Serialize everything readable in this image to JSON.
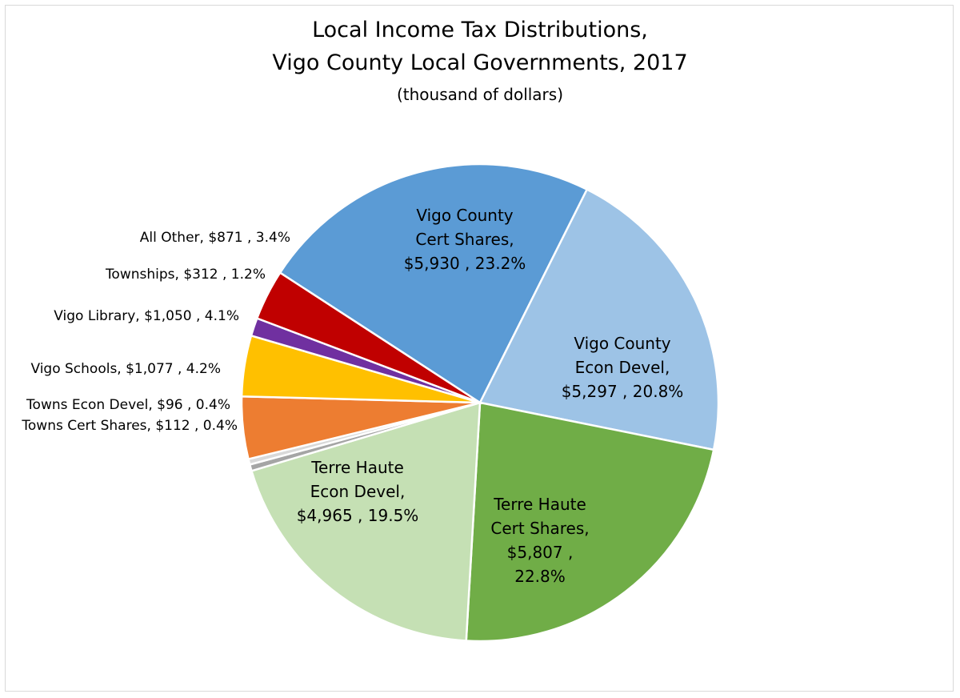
{
  "chart_data": {
    "type": "pie",
    "title_lines": [
      "Local Income Tax Distributions,",
      "Vigo County Local Governments, 2017"
    ],
    "subtitle": "(thousand of dollars)",
    "slices": [
      {
        "name": "Vigo County Cert Shares",
        "value": 5930,
        "percent": 23.2,
        "color": "#5B9BD5",
        "label_lines": [
          "Vigo County",
          "Cert Shares,",
          "$5,930 , 23.2%"
        ]
      },
      {
        "name": "Vigo County Econ Devel",
        "value": 5297,
        "percent": 20.8,
        "color": "#9DC3E6",
        "label_lines": [
          "Vigo County",
          "Econ Devel,",
          "$5,297 , 20.8%"
        ]
      },
      {
        "name": "Terre Haute Cert Shares",
        "value": 5807,
        "percent": 22.8,
        "color": "#70AD47",
        "label_lines": [
          "Terre Haute",
          "Cert Shares,",
          "$5,807 ,",
          "22.8%"
        ]
      },
      {
        "name": "Terre Haute Econ Devel",
        "value": 4965,
        "percent": 19.5,
        "color": "#C5E0B4",
        "label_lines": [
          "Terre Haute",
          "Econ Devel,",
          "$4,965 , 19.5%"
        ]
      },
      {
        "name": "Towns Cert Shares",
        "value": 112,
        "percent": 0.4,
        "color": "#A5A5A5",
        "label_lines": [
          "Towns Cert Shares,  $112 , 0.4%"
        ]
      },
      {
        "name": "Towns Econ Devel",
        "value": 96,
        "percent": 0.4,
        "color": "#D9D9D9",
        "label_lines": [
          "Towns Econ Devel,  $96 , 0.4%"
        ]
      },
      {
        "name": "Vigo Schools",
        "value": 1077,
        "percent": 4.2,
        "color": "#ED7D31",
        "label_lines": [
          "Vigo Schools,  $1,077 , 4.2%"
        ]
      },
      {
        "name": "Vigo Library",
        "value": 1050,
        "percent": 4.1,
        "color": "#FFC000",
        "label_lines": [
          "Vigo Library,  $1,050 , 4.1%"
        ]
      },
      {
        "name": "Townships",
        "value": 312,
        "percent": 1.2,
        "color": "#7030A0",
        "label_lines": [
          "Townships,  $312 , 1.2%"
        ]
      },
      {
        "name": "All Other",
        "value": 871,
        "percent": 3.4,
        "color": "#C00000",
        "label_lines": [
          "All Other,  $871 , 3.4%"
        ]
      }
    ],
    "legend": "none"
  }
}
